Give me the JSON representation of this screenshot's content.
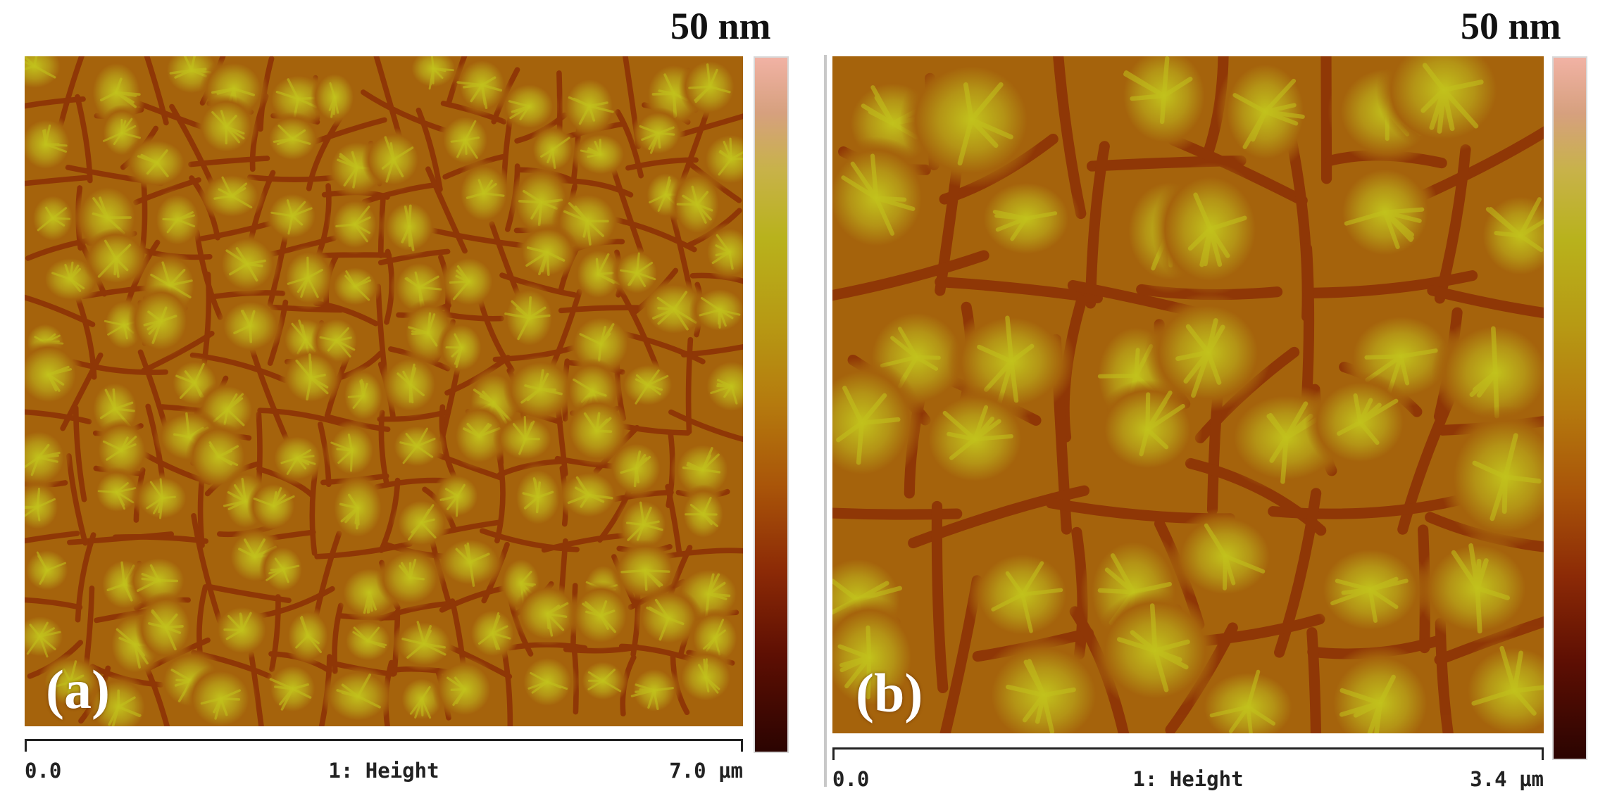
{
  "panels": [
    {
      "label": "(a)",
      "scale_max": "50 nm",
      "axis_start": "0.0",
      "axis_title": "1: Height",
      "axis_end": "7.0 µm"
    },
    {
      "label": "(b)",
      "scale_max": "50 nm",
      "axis_start": "0.0",
      "axis_title": "1: Height",
      "axis_end": "3.4 µm"
    }
  ],
  "colors": {
    "colormap": [
      "#2b0401",
      "#5e0f03",
      "#8c2a06",
      "#a95409",
      "#b57a0e",
      "#b79a14",
      "#b8b21c",
      "#c8b24a",
      "#d6a07e",
      "#f1b2a4"
    ],
    "valley": "#8c3006",
    "base": "#a5630c",
    "peak": "#c2c21c"
  }
}
